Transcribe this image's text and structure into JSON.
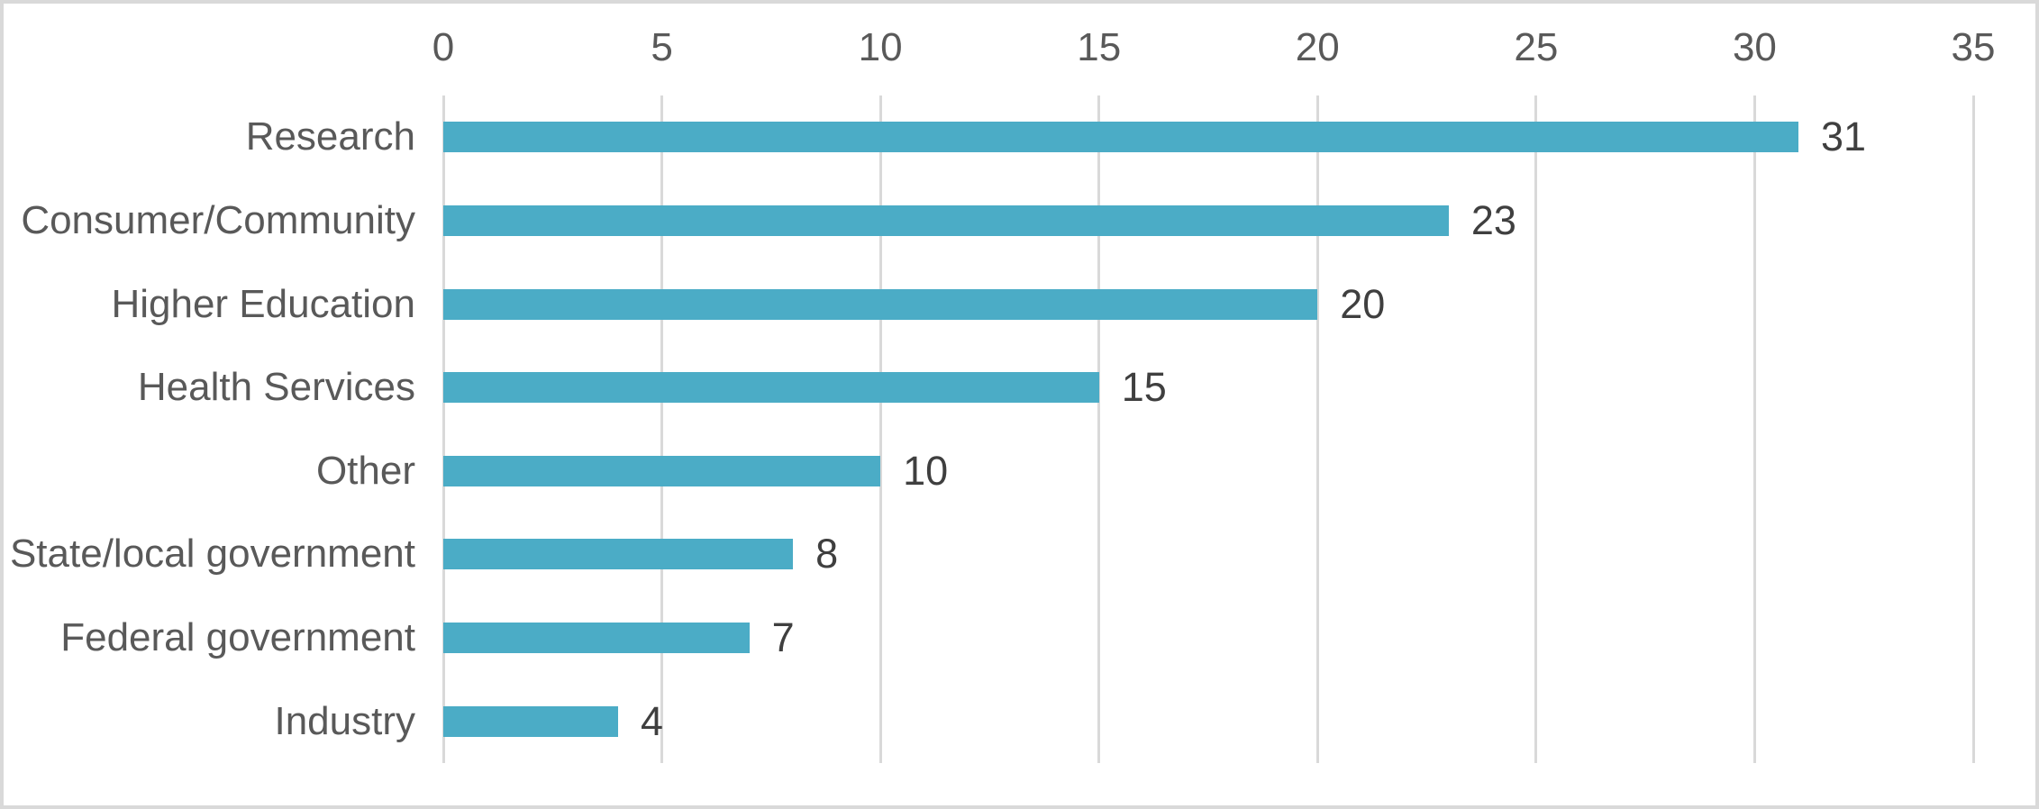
{
  "chart_data": {
    "type": "bar",
    "orientation": "horizontal",
    "title": "",
    "xlabel": "",
    "ylabel": "",
    "categories": [
      "Research",
      "Consumer/Community",
      "Higher Education",
      "Health Services",
      "Other",
      "State/local government",
      "Federal government",
      "Industry"
    ],
    "values": [
      31,
      23,
      20,
      15,
      10,
      8,
      7,
      4
    ],
    "xlim": [
      0,
      35
    ],
    "x_ticks": [
      0,
      5,
      10,
      15,
      20,
      25,
      30,
      35
    ],
    "axis_position": "top",
    "grid": "vertical-on",
    "legend": "none",
    "data_labels": "outside-end"
  },
  "colors": {
    "bar_fill": "#4BACC6",
    "gridline": "#D9D9D9",
    "frame_border": "#D9D9D9",
    "tick_label": "#595959",
    "category_label": "#595959",
    "value_label": "#3F3F3F",
    "background": "#FFFFFF"
  }
}
